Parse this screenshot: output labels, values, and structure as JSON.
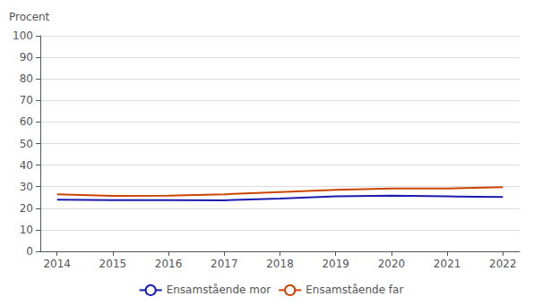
{
  "chart_data": {
    "type": "line",
    "x": [
      2014,
      2015,
      2016,
      2017,
      2018,
      2019,
      2020,
      2021,
      2022
    ],
    "series": [
      {
        "name": "Ensamstående mor",
        "color": "#1a1ab0",
        "values": [
          24.0,
          23.8,
          23.8,
          23.7,
          24.5,
          25.5,
          25.8,
          25.5,
          25.2
        ]
      },
      {
        "name": "Ensamstående far",
        "color": "#cc4400",
        "values": [
          26.5,
          25.7,
          25.8,
          26.5,
          27.5,
          28.5,
          29.2,
          29.2,
          29.8
        ]
      }
    ],
    "ylabel": "Procent",
    "xlim": [
      2013.7,
      2022.3
    ],
    "xticks": [
      2014,
      2015,
      2016,
      2017,
      2018,
      2019,
      2020,
      2021,
      2022
    ],
    "ylim": [
      0,
      100
    ],
    "yticks": [
      0,
      10,
      20,
      30,
      40,
      50,
      60,
      70,
      80,
      90,
      100
    ],
    "grid": true,
    "legend": "bottom"
  }
}
